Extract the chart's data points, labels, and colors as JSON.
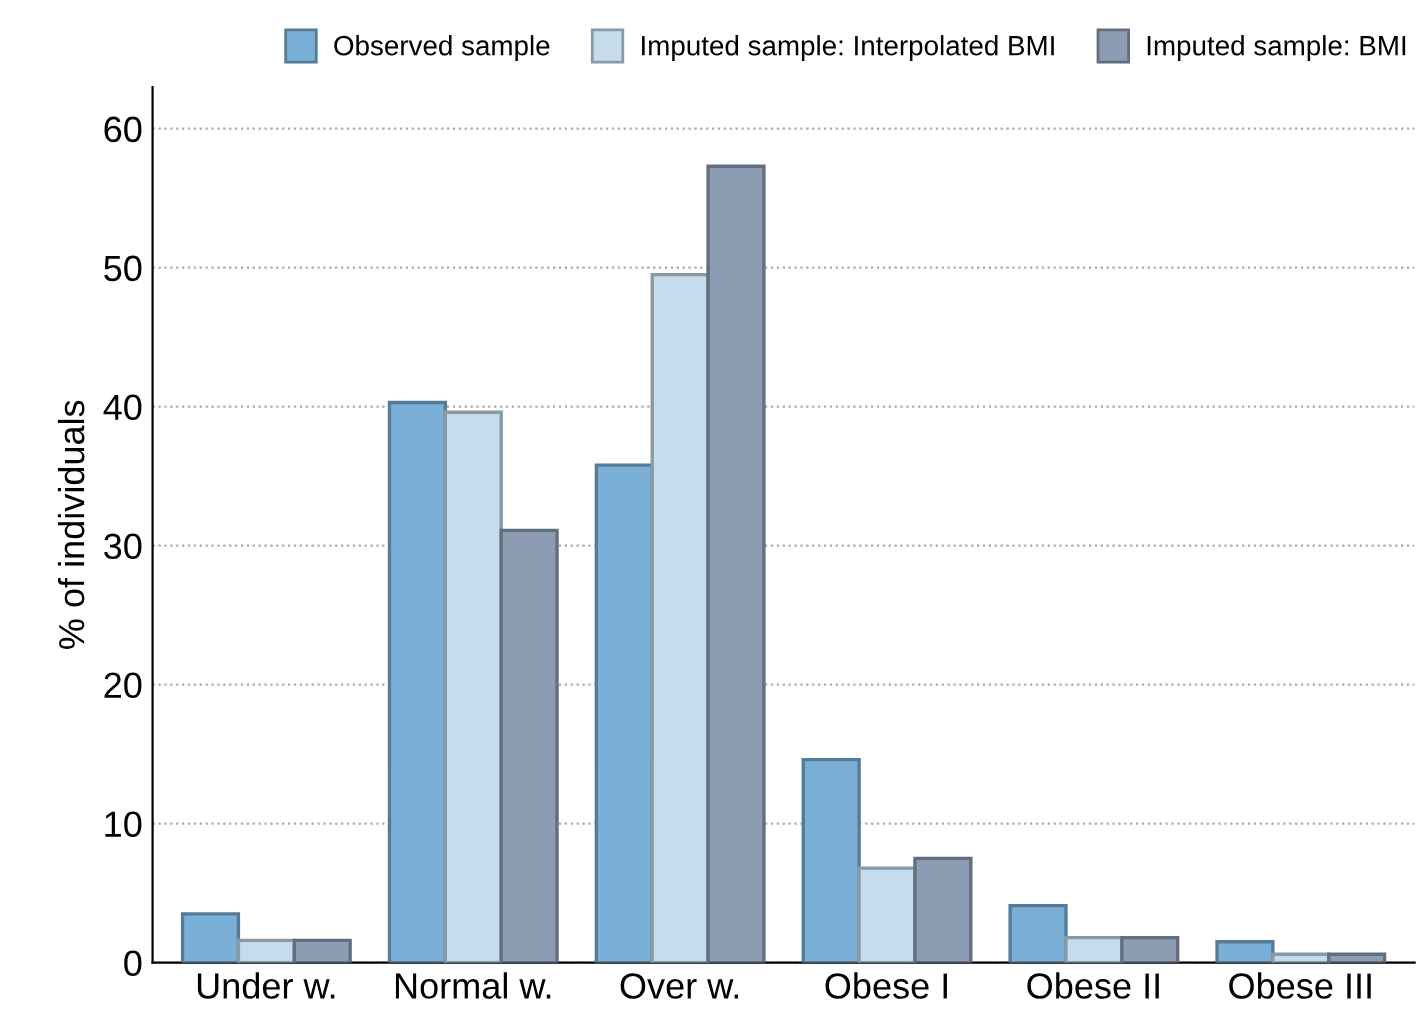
{
  "chart_data": {
    "type": "bar",
    "ylabel": "% of individuals",
    "categories": [
      "Under w.",
      "Normal w.",
      "Over w.",
      "Obese I",
      "Obese II",
      "Obese III"
    ],
    "series": [
      {
        "name": "Observed sample",
        "color": "#7ab0d8",
        "values": [
          3.5,
          40.3,
          35.8,
          14.6,
          4.1,
          1.5
        ]
      },
      {
        "name": "Imputed sample: Interpolated BMI",
        "color": "#c5dcec",
        "values": [
          1.6,
          39.6,
          49.5,
          6.8,
          1.8,
          0.6
        ]
      },
      {
        "name": "Imputed sample: BMI",
        "color": "#8c9db3",
        "values": [
          1.6,
          31.1,
          57.3,
          7.5,
          1.8,
          0.6
        ]
      }
    ],
    "ylim": [
      0,
      63
    ],
    "yticks": [
      0,
      10,
      20,
      30,
      40,
      50,
      60
    ],
    "grid": "y",
    "legend": "top"
  }
}
